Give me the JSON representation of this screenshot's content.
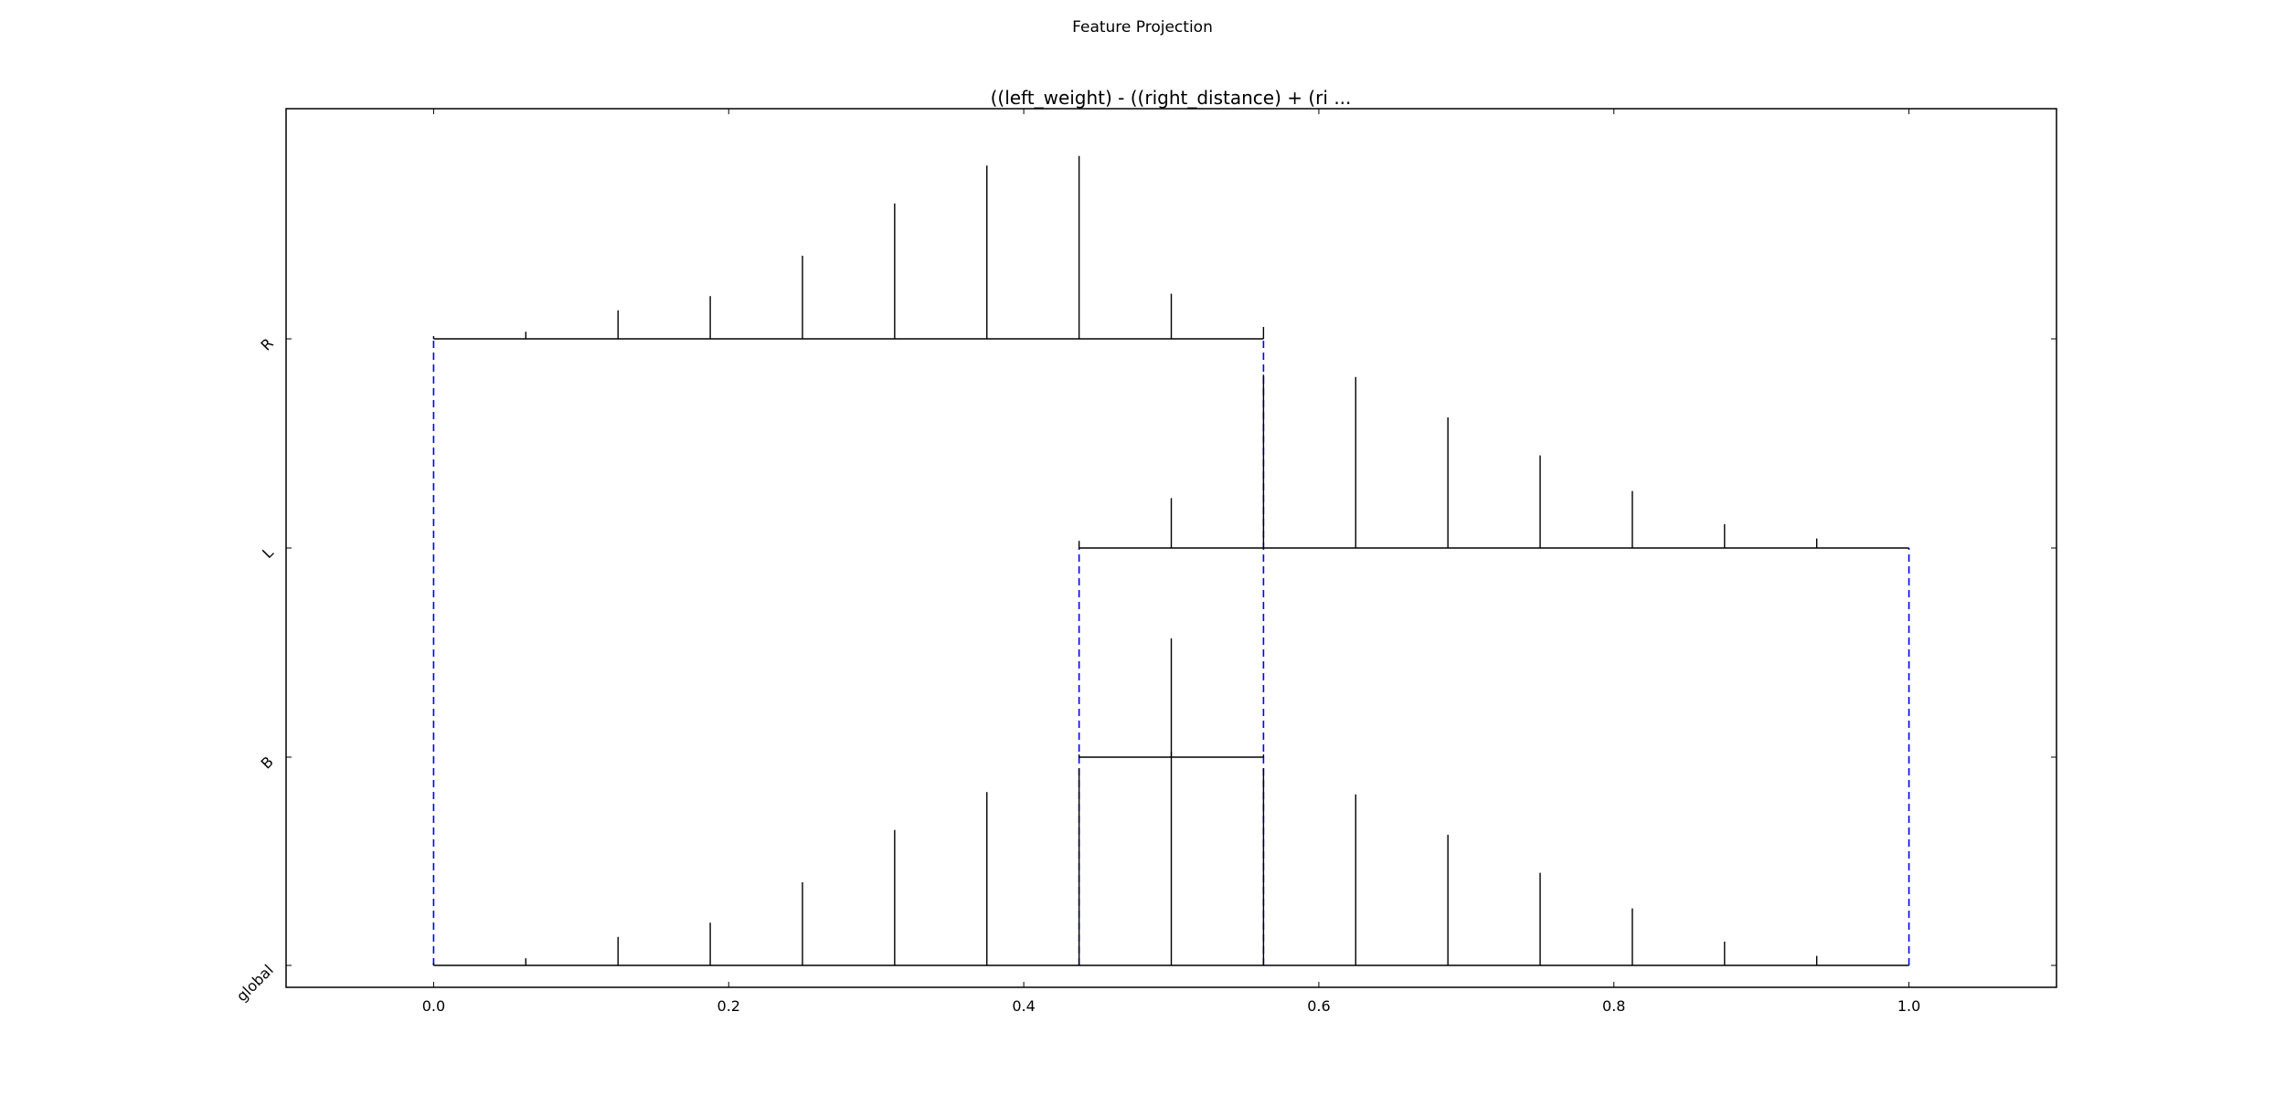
{
  "figure": {
    "suptitle": "Feature Projection"
  },
  "chart_data": {
    "type": "line",
    "title": "((left_weight) - ((right_distance) + (ri ...",
    "xlabel": "",
    "ylabel": "",
    "xlim": [
      -0.1,
      1.1
    ],
    "xticks": [
      "0.0",
      "0.2",
      "0.4",
      "0.6",
      "0.8",
      "1.0"
    ],
    "yticks": [
      "global",
      "B",
      "L",
      "R"
    ],
    "grid": false,
    "bin_width": 0.0625,
    "rows": [
      {
        "name": "global",
        "level": 0,
        "range": [
          0.0,
          1.0
        ],
        "bars": [
          {
            "x": 0.0,
            "h": 0.0
          },
          {
            "x": 0.0625,
            "h": 0.03
          },
          {
            "x": 0.125,
            "h": 0.12
          },
          {
            "x": 0.1875,
            "h": 0.18
          },
          {
            "x": 0.25,
            "h": 0.35
          },
          {
            "x": 0.3125,
            "h": 0.57
          },
          {
            "x": 0.375,
            "h": 0.73
          },
          {
            "x": 0.4375,
            "h": 0.83
          },
          {
            "x": 0.5,
            "h": 0.9
          },
          {
            "x": 0.5625,
            "h": 0.83
          },
          {
            "x": 0.625,
            "h": 0.72
          },
          {
            "x": 0.6875,
            "h": 0.55
          },
          {
            "x": 0.75,
            "h": 0.39
          },
          {
            "x": 0.8125,
            "h": 0.24
          },
          {
            "x": 0.875,
            "h": 0.1
          },
          {
            "x": 0.9375,
            "h": 0.04
          }
        ]
      },
      {
        "name": "B",
        "level": 1,
        "range": [
          0.4375,
          0.5625
        ],
        "bars": [
          {
            "x": 0.4375,
            "h": 0.0
          },
          {
            "x": 0.5,
            "h": 0.5
          },
          {
            "x": 0.5625,
            "h": 0.0
          }
        ]
      },
      {
        "name": "L",
        "level": 2,
        "range": [
          0.4375,
          1.0
        ],
        "bars": [
          {
            "x": 0.4375,
            "h": 0.03
          },
          {
            "x": 0.5,
            "h": 0.21
          },
          {
            "x": 0.5625,
            "h": 0.73
          },
          {
            "x": 0.625,
            "h": 0.72
          },
          {
            "x": 0.6875,
            "h": 0.55
          },
          {
            "x": 0.75,
            "h": 0.39
          },
          {
            "x": 0.8125,
            "h": 0.24
          },
          {
            "x": 0.875,
            "h": 0.1
          },
          {
            "x": 0.9375,
            "h": 0.04
          }
        ]
      },
      {
        "name": "R",
        "level": 3,
        "range": [
          0.0,
          0.5625
        ],
        "bars": [
          {
            "x": 0.0,
            "h": 0.0
          },
          {
            "x": 0.0625,
            "h": 0.03
          },
          {
            "x": 0.125,
            "h": 0.12
          },
          {
            "x": 0.1875,
            "h": 0.18
          },
          {
            "x": 0.25,
            "h": 0.35
          },
          {
            "x": 0.3125,
            "h": 0.57
          },
          {
            "x": 0.375,
            "h": 0.73
          },
          {
            "x": 0.4375,
            "h": 0.77
          },
          {
            "x": 0.5,
            "h": 0.19
          },
          {
            "x": 0.5625,
            "h": 0.05
          }
        ]
      }
    ],
    "connectors": [
      {
        "x": 0.0,
        "from": "global",
        "to": "R"
      },
      {
        "x": 0.5625,
        "from": "global",
        "to": "R"
      },
      {
        "x": 0.4375,
        "from": "global",
        "to": "L"
      },
      {
        "x": 1.0,
        "from": "global",
        "to": "L"
      }
    ],
    "colors": {
      "axes": "#000000",
      "bars": "#000000",
      "connector": "#0000ff"
    }
  }
}
